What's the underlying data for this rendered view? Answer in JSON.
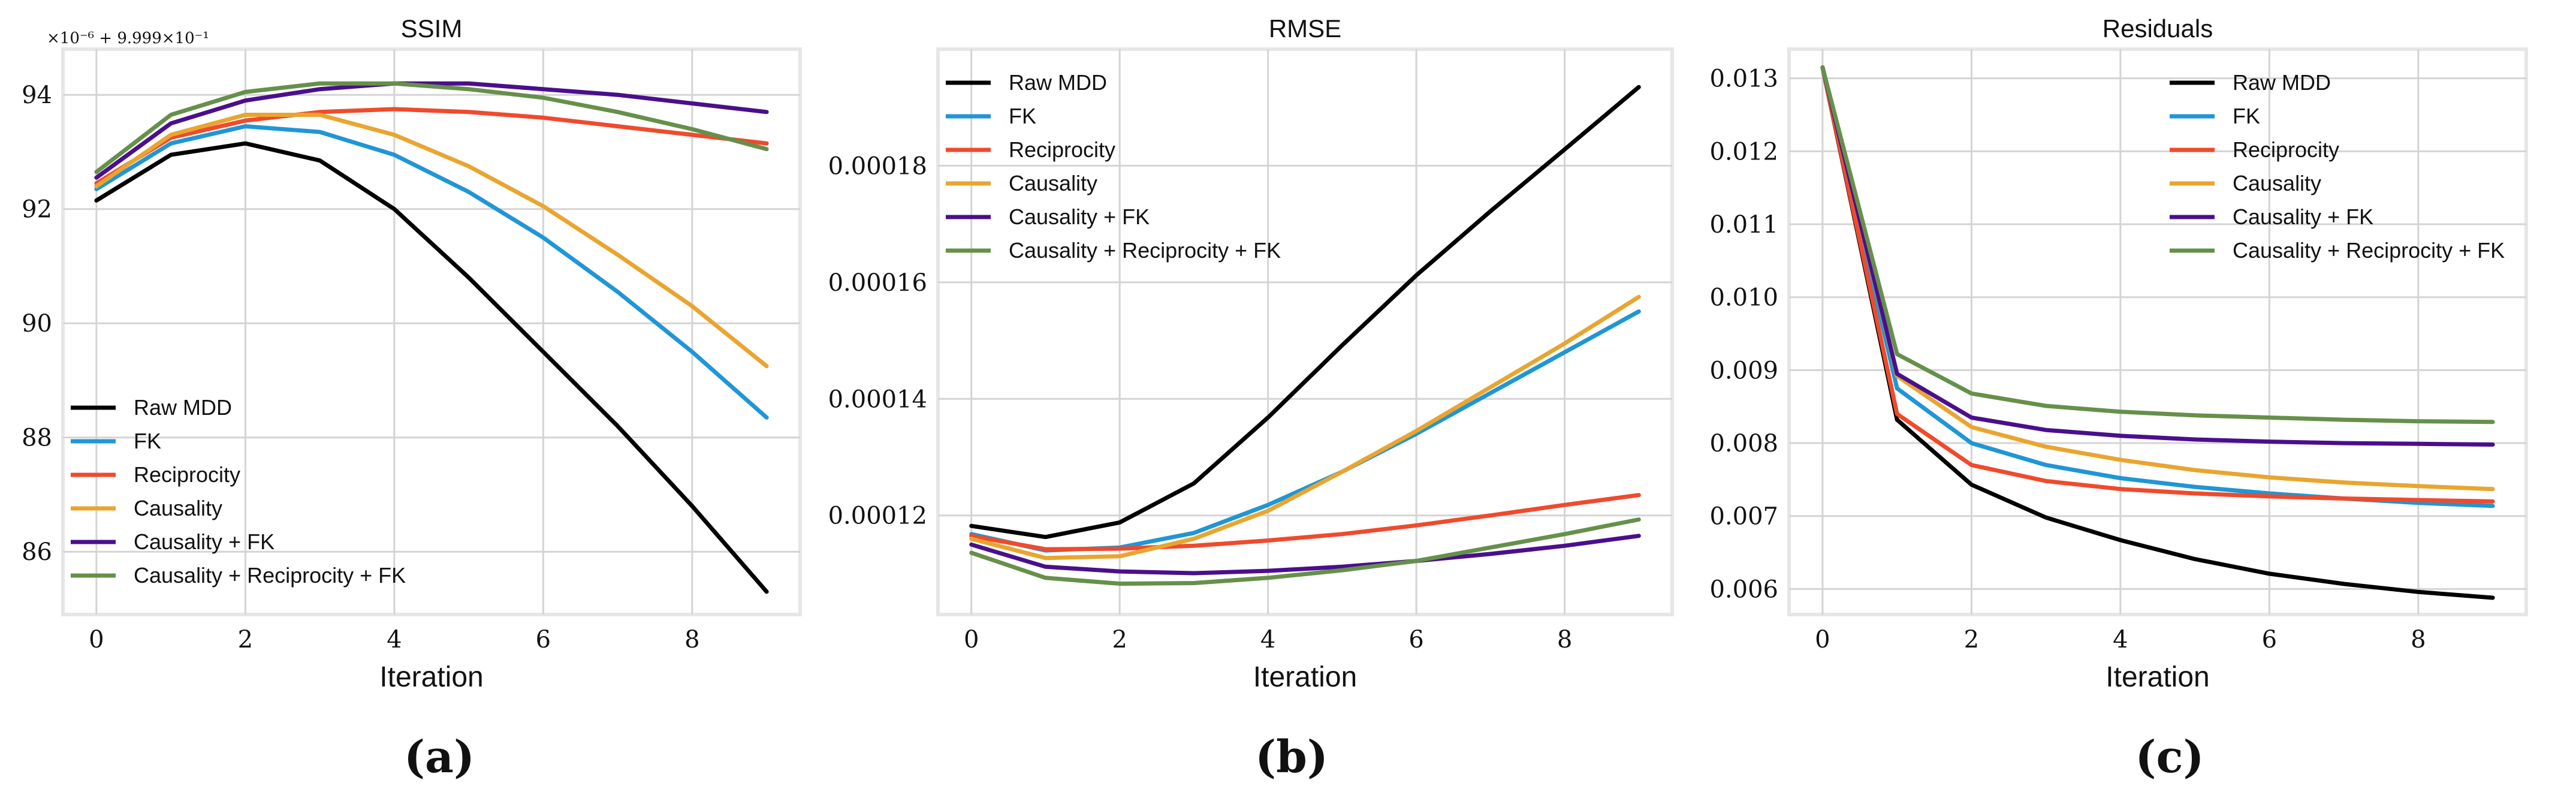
{
  "colors": {
    "Raw MDD": "#000000",
    "FK": "#1f96d6",
    "Reciprocity": "#f04a2c",
    "Causality": "#e9a52f",
    "Causality + FK": "#4a0f8c",
    "Causality + Reciprocity + FK": "#66904a"
  },
  "panel_labels": [
    "(a)",
    "(b)",
    "(c)"
  ],
  "chart_data": [
    {
      "type": "line",
      "title": "SSIM",
      "xlabel": "Iteration",
      "ylabel": "",
      "offset_label": "×10⁻⁶ + 9.999×10⁻¹",
      "xlim": [
        -0.45,
        9.45
      ],
      "ylim": [
        84.9,
        94.8
      ],
      "xticks": [
        0,
        2,
        4,
        6,
        8
      ],
      "xtick_labels": [
        "0",
        "2",
        "4",
        "6",
        "8"
      ],
      "yticks": [
        86,
        88,
        90,
        92,
        94
      ],
      "ytick_labels": [
        "86",
        "88",
        "90",
        "92",
        "94"
      ],
      "legend_position": "lower-left",
      "grid": true,
      "x": [
        0,
        1,
        2,
        3,
        4,
        5,
        6,
        7,
        8,
        9
      ],
      "series": [
        {
          "name": "Raw MDD",
          "values": [
            92.15,
            92.95,
            93.15,
            92.85,
            92.0,
            90.8,
            89.5,
            88.2,
            86.8,
            85.3
          ]
        },
        {
          "name": "FK",
          "values": [
            92.35,
            93.15,
            93.45,
            93.35,
            92.95,
            92.3,
            91.5,
            90.55,
            89.5,
            88.35
          ]
        },
        {
          "name": "Reciprocity",
          "values": [
            92.45,
            93.25,
            93.55,
            93.7,
            93.75,
            93.7,
            93.6,
            93.45,
            93.3,
            93.15
          ]
        },
        {
          "name": "Causality",
          "values": [
            92.4,
            93.3,
            93.65,
            93.65,
            93.3,
            92.75,
            92.05,
            91.2,
            90.3,
            89.25
          ]
        },
        {
          "name": "Causality + FK",
          "values": [
            92.55,
            93.5,
            93.9,
            94.1,
            94.2,
            94.2,
            94.1,
            94.0,
            93.85,
            93.7
          ]
        },
        {
          "name": "Causality + Reciprocity + FK",
          "values": [
            92.65,
            93.65,
            94.05,
            94.2,
            94.2,
            94.1,
            93.95,
            93.7,
            93.4,
            93.05
          ]
        }
      ]
    },
    {
      "type": "line",
      "title": "RMSE",
      "xlabel": "Iteration",
      "ylabel": "",
      "xlim": [
        -0.45,
        9.45
      ],
      "ylim": [
        0.000103,
        0.0002
      ],
      "xticks": [
        0,
        2,
        4,
        6,
        8
      ],
      "xtick_labels": [
        "0",
        "2",
        "4",
        "6",
        "8"
      ],
      "yticks": [
        0.00012,
        0.00014,
        0.00016,
        0.00018
      ],
      "ytick_labels": [
        "0.00012",
        "0.00014",
        "0.00016",
        "0.00018"
      ],
      "legend_position": "upper-left",
      "grid": true,
      "x": [
        0,
        1,
        2,
        3,
        4,
        5,
        6,
        7,
        8,
        9
      ],
      "series": [
        {
          "name": "Raw MDD",
          "values": [
            0.0001182,
            0.0001163,
            0.0001188,
            0.0001255,
            0.0001368,
            0.0001492,
            0.0001612,
            0.0001722,
            0.0001828,
            0.0001935
          ]
        },
        {
          "name": "FK",
          "values": [
            0.0001168,
            0.000114,
            0.0001145,
            0.000117,
            0.0001218,
            0.0001275,
            0.000134,
            0.000141,
            0.000148,
            0.000155
          ]
        },
        {
          "name": "Reciprocity",
          "values": [
            0.0001165,
            0.0001142,
            0.0001143,
            0.0001148,
            0.0001157,
            0.0001168,
            0.0001183,
            0.00012,
            0.0001218,
            0.0001235
          ]
        },
        {
          "name": "Causality",
          "values": [
            0.000116,
            0.0001127,
            0.000113,
            0.000116,
            0.0001208,
            0.0001275,
            0.0001345,
            0.000142,
            0.0001495,
            0.0001575
          ]
        },
        {
          "name": "Causality + FK",
          "values": [
            0.000115,
            0.0001112,
            0.0001104,
            0.0001101,
            0.0001105,
            0.0001112,
            0.0001122,
            0.0001134,
            0.0001148,
            0.0001165
          ]
        },
        {
          "name": "Causality + Reciprocity + FK",
          "values": [
            0.0001136,
            0.0001093,
            0.0001083,
            0.0001084,
            0.0001093,
            0.0001106,
            0.0001122,
            0.0001145,
            0.0001168,
            0.0001193
          ]
        }
      ]
    },
    {
      "type": "line",
      "title": "Residuals",
      "xlabel": "Iteration",
      "ylabel": "",
      "xlim": [
        -0.45,
        9.45
      ],
      "ylim": [
        0.00565,
        0.0134
      ],
      "xticks": [
        0,
        2,
        4,
        6,
        8
      ],
      "xtick_labels": [
        "0",
        "2",
        "4",
        "6",
        "8"
      ],
      "yticks": [
        0.006,
        0.007,
        0.008,
        0.009,
        0.01,
        0.011,
        0.012,
        0.013
      ],
      "ytick_labels": [
        "0.006",
        "0.007",
        "0.008",
        "0.009",
        "0.010",
        "0.011",
        "0.012",
        "0.013"
      ],
      "legend_position": "upper-right",
      "grid": true,
      "x": [
        0,
        1,
        2,
        3,
        4,
        5,
        6,
        7,
        8,
        9
      ],
      "series": [
        {
          "name": "Raw MDD",
          "values": [
            0.01315,
            0.00832,
            0.00743,
            0.00698,
            0.00667,
            0.00641,
            0.00621,
            0.00607,
            0.00596,
            0.00588
          ]
        },
        {
          "name": "FK",
          "values": [
            0.01315,
            0.00875,
            0.008,
            0.0077,
            0.00752,
            0.0074,
            0.00731,
            0.00724,
            0.00718,
            0.00714
          ]
        },
        {
          "name": "Reciprocity",
          "values": [
            0.01315,
            0.0084,
            0.0077,
            0.00748,
            0.00737,
            0.00731,
            0.00727,
            0.00724,
            0.00722,
            0.0072
          ]
        },
        {
          "name": "Causality",
          "values": [
            0.01315,
            0.00892,
            0.00822,
            0.00795,
            0.00777,
            0.00763,
            0.00753,
            0.00746,
            0.00741,
            0.00737
          ]
        },
        {
          "name": "Causality + FK",
          "values": [
            0.01315,
            0.00895,
            0.00835,
            0.00818,
            0.0081,
            0.00805,
            0.00802,
            0.008,
            0.00799,
            0.00798
          ]
        },
        {
          "name": "Causality + Reciprocity + FK",
          "values": [
            0.01315,
            0.00922,
            0.00868,
            0.00851,
            0.00843,
            0.00838,
            0.00835,
            0.00832,
            0.0083,
            0.00829
          ]
        }
      ]
    }
  ]
}
